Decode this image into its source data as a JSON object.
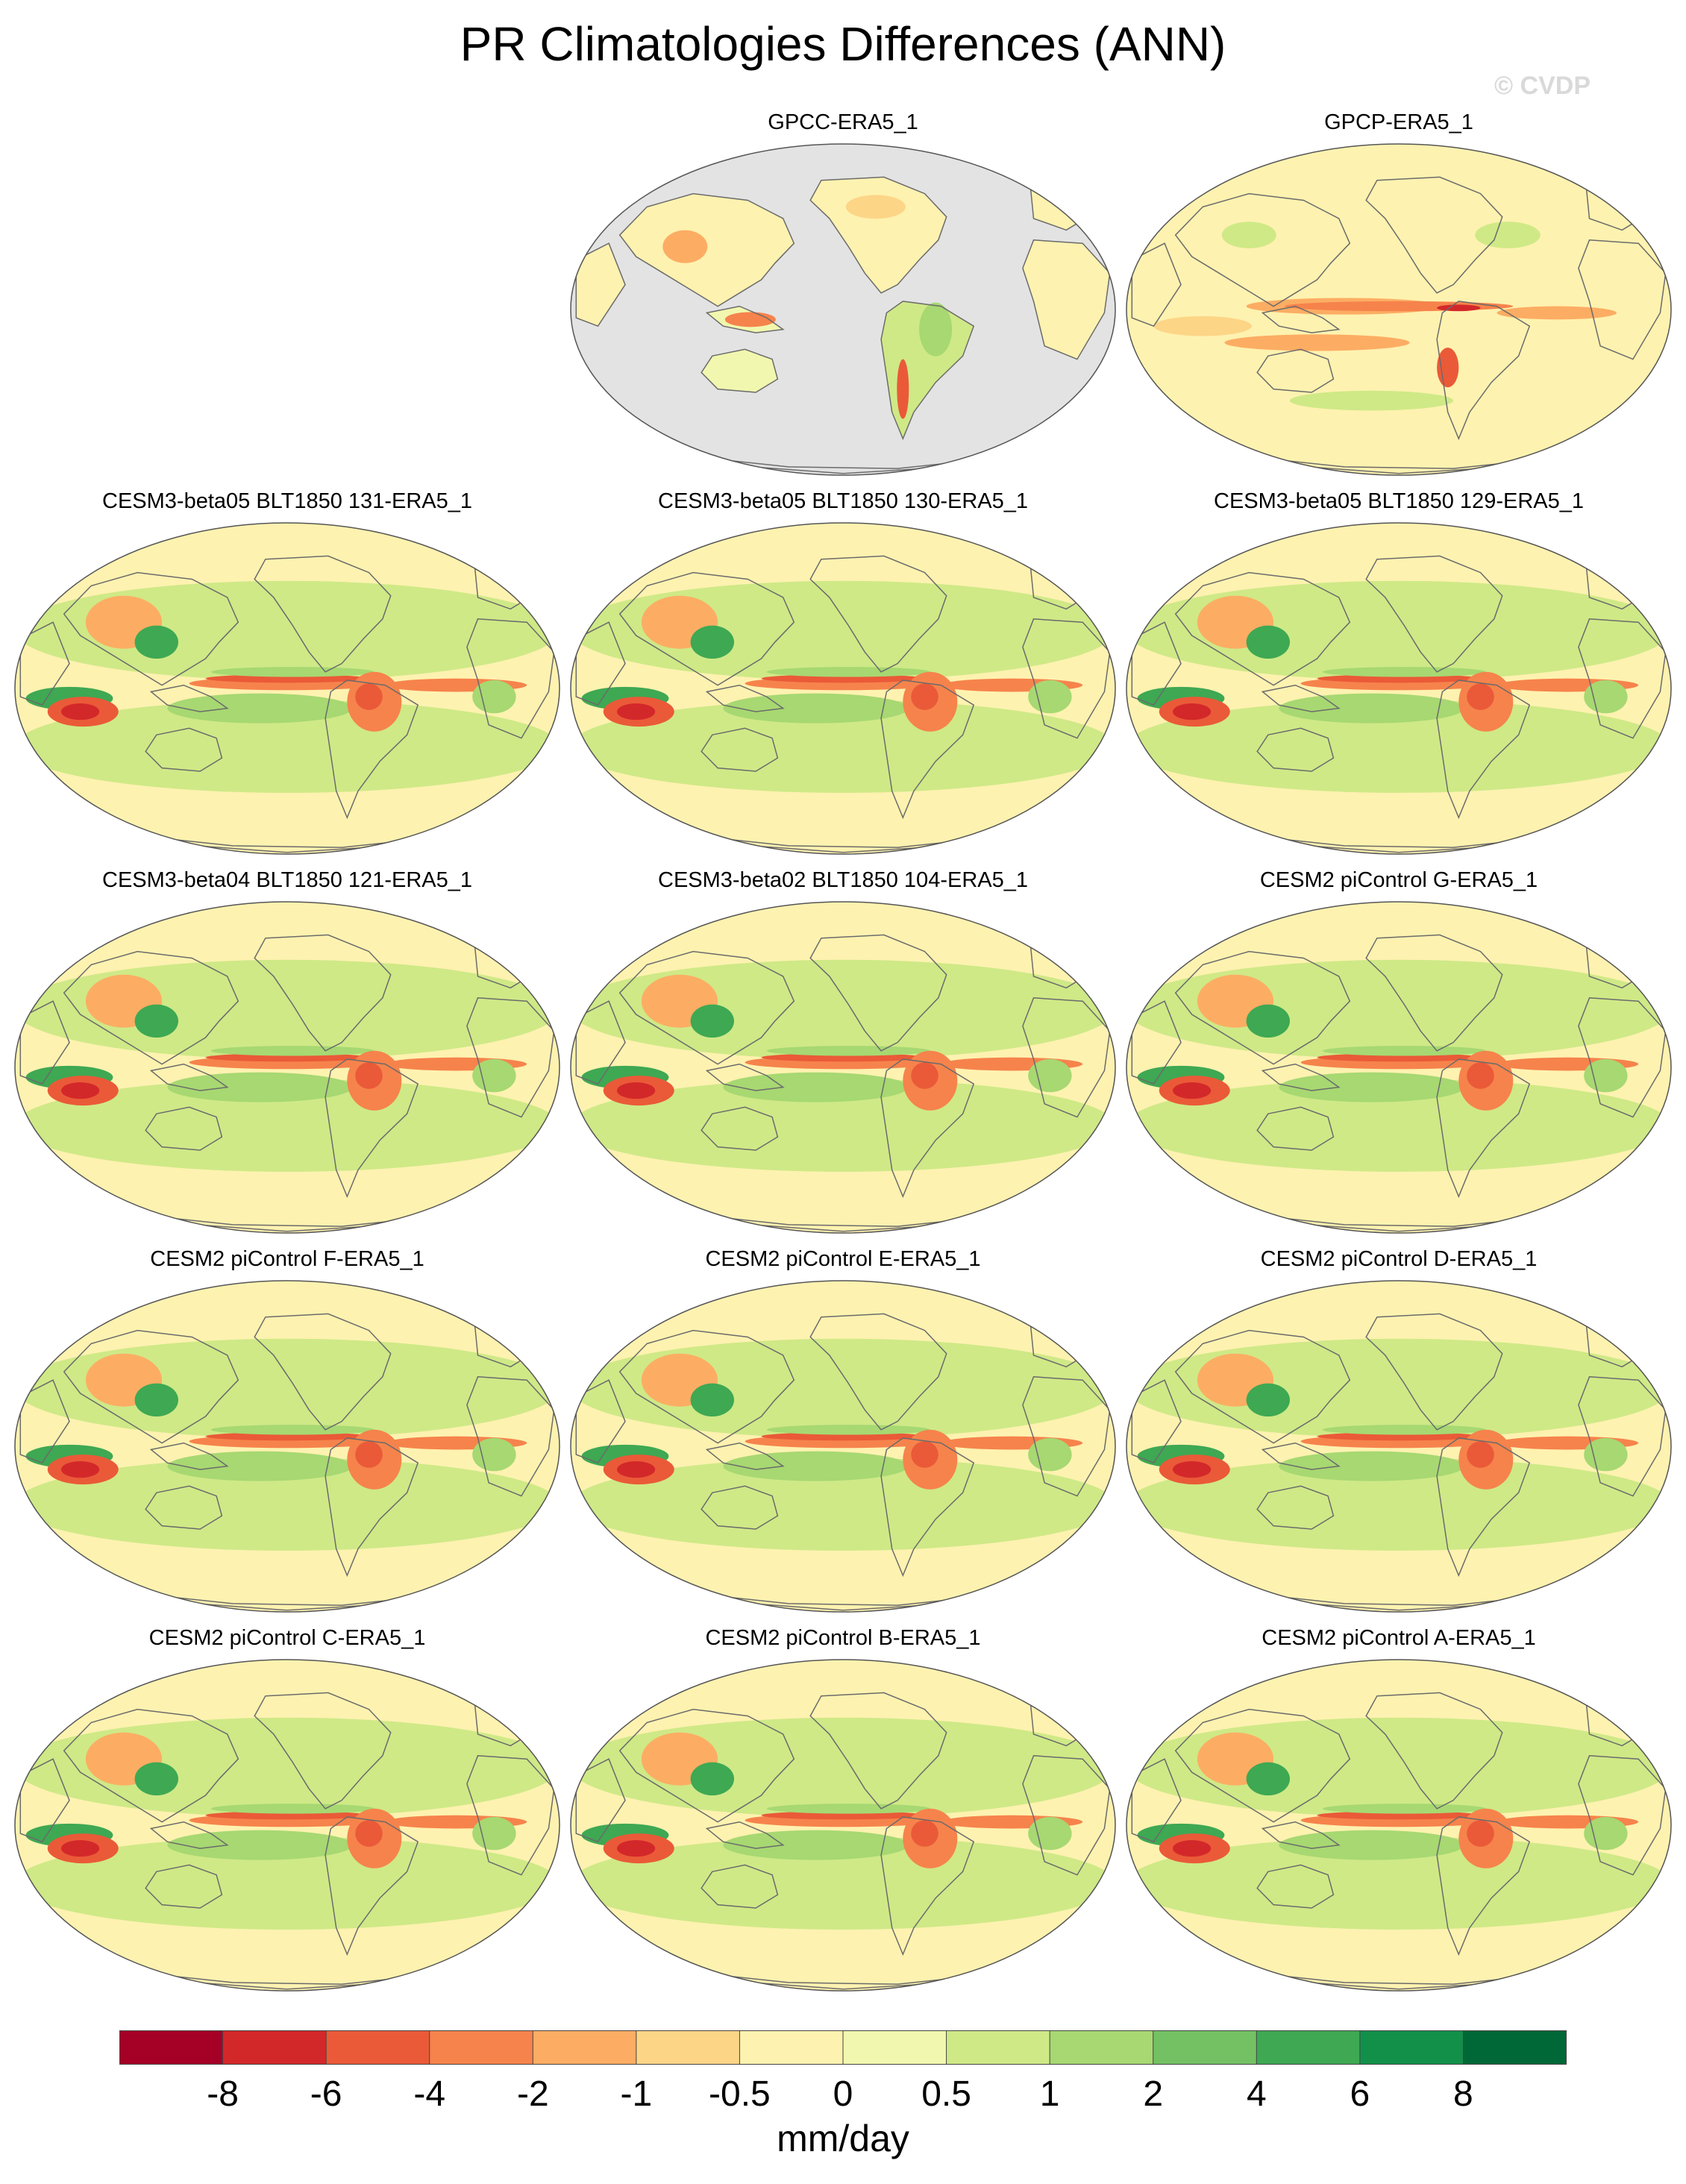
{
  "chart_data": {
    "type": "heatmap",
    "title": "PR Climatologies Differences (ANN)",
    "watermark": "© CVDP",
    "units": "mm/day",
    "colorbar": {
      "levels": [
        "-8",
        "-6",
        "-4",
        "-2",
        "-1",
        "-0.5",
        "0",
        "0.5",
        "1",
        "2",
        "4",
        "6",
        "8"
      ],
      "colors": [
        "#a50026",
        "#d3282a",
        "#ea5a38",
        "#f6834c",
        "#fcad63",
        "#fdd587",
        "#fef2b0",
        "#f1f7ae",
        "#cfe987",
        "#a7d872",
        "#74c164",
        "#3ea853",
        "#12904a",
        "#006837"
      ]
    },
    "panels": [
      {
        "title": "GPCC-ERA5_1",
        "variant": "land"
      },
      {
        "title": "GPCP-ERA5_1",
        "variant": "obs"
      },
      {
        "title": "CESM3-beta05 BLT1850 131-ERA5_1",
        "variant": "model"
      },
      {
        "title": "CESM3-beta05 BLT1850 130-ERA5_1",
        "variant": "model"
      },
      {
        "title": "CESM3-beta05 BLT1850 129-ERA5_1",
        "variant": "model"
      },
      {
        "title": "CESM3-beta04 BLT1850 121-ERA5_1",
        "variant": "model"
      },
      {
        "title": "CESM3-beta02 BLT1850 104-ERA5_1",
        "variant": "model"
      },
      {
        "title": "CESM2 piControl G-ERA5_1",
        "variant": "model"
      },
      {
        "title": "CESM2 piControl F-ERA5_1",
        "variant": "model"
      },
      {
        "title": "CESM2 piControl E-ERA5_1",
        "variant": "model"
      },
      {
        "title": "CESM2 piControl D-ERA5_1",
        "variant": "model"
      },
      {
        "title": "CESM2 piControl C-ERA5_1",
        "variant": "model"
      },
      {
        "title": "CESM2 piControl B-ERA5_1",
        "variant": "model"
      },
      {
        "title": "CESM2 piControl A-ERA5_1",
        "variant": "model"
      }
    ]
  }
}
